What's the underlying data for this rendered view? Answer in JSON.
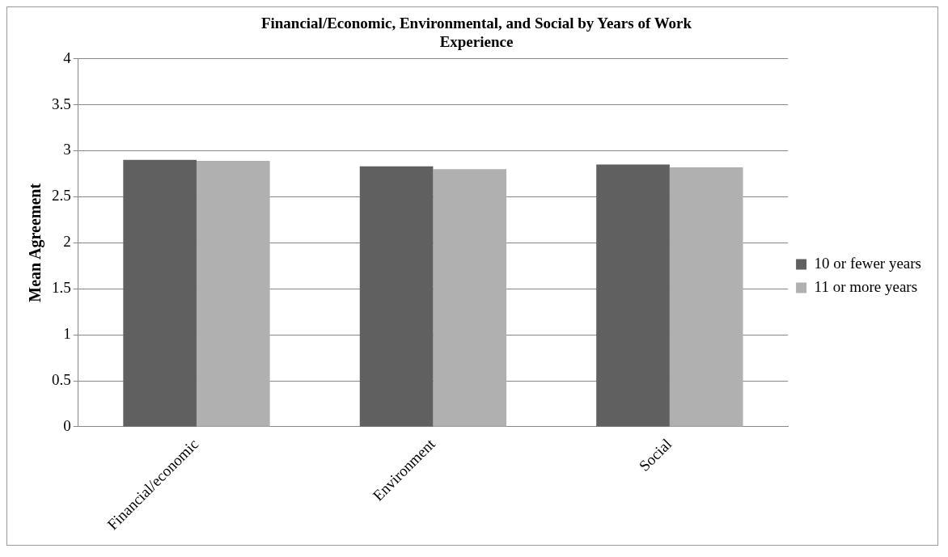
{
  "chart_data": {
    "type": "bar",
    "title": "Financial/Economic, Environmental, and Social by Years of Work Experience",
    "ylabel": "Mean Agreement",
    "categories": [
      "Financial/economic",
      "Environment",
      "Social"
    ],
    "series": [
      {
        "name": "10 or fewer years",
        "color": "#606060",
        "values": [
          2.9,
          2.83,
          2.85
        ]
      },
      {
        "name": "11 or more years",
        "color": "#b0b0b0",
        "values": [
          2.89,
          2.8,
          2.82
        ]
      }
    ],
    "ylim": [
      0,
      4
    ],
    "yticks": [
      0,
      0.5,
      1,
      1.5,
      2,
      2.5,
      3,
      3.5,
      4
    ],
    "grid": "y",
    "legend": "right"
  }
}
